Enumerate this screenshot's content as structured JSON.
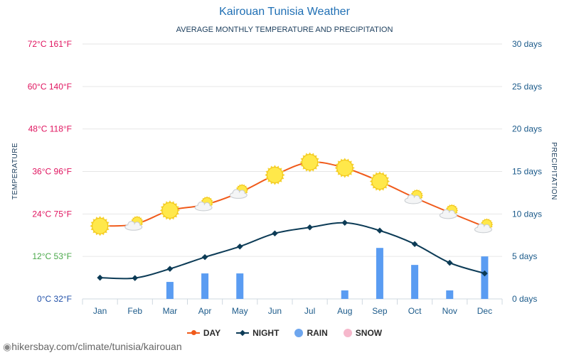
{
  "title": "Kairouan Tunisia Weather",
  "subtitle": "AVERAGE MONTHLY TEMPERATURE AND PRECIPITATION",
  "footer": "hikersbay.com/climate/tunisia/kairouan",
  "colors": {
    "day": "#f05a1a",
    "night": "#0c3b56",
    "rain": "#5a9cf2",
    "snow": "#f6b8cc",
    "grid": "#e6e6e6"
  },
  "legend": [
    {
      "label": "DAY",
      "color": "#f05a1a",
      "kind": "line-dot"
    },
    {
      "label": "NIGHT",
      "color": "#0c3b56",
      "kind": "line-diamond"
    },
    {
      "label": "RAIN",
      "color": "#6ea6ee",
      "kind": "circle"
    },
    {
      "label": "SNOW",
      "color": "#f6b8cc",
      "kind": "circle"
    }
  ],
  "chart_data": {
    "type": "line",
    "categories": [
      "Jan",
      "Feb",
      "Mar",
      "Apr",
      "May",
      "Jun",
      "Jul",
      "Aug",
      "Sep",
      "Oct",
      "Nov",
      "Dec"
    ],
    "left_axis": {
      "title": "TEMPERATURE",
      "range": [
        0,
        72
      ],
      "ticks": [
        {
          "value": 0,
          "label": "0°C 32°F",
          "color": "#1f4fa8"
        },
        {
          "value": 12,
          "label": "12°C 53°F",
          "color": "#4aa84a"
        },
        {
          "value": 24,
          "label": "24°C 75°F",
          "color": "#e0145f"
        },
        {
          "value": 36,
          "label": "36°C 96°F",
          "color": "#e0145f"
        },
        {
          "value": 48,
          "label": "48°C 118°F",
          "color": "#e0145f"
        },
        {
          "value": 60,
          "label": "60°C 140°F",
          "color": "#e0145f"
        },
        {
          "value": 72,
          "label": "72°C 161°F",
          "color": "#e0145f"
        }
      ]
    },
    "right_axis": {
      "title": "PRECIPITATION",
      "range": [
        0,
        30
      ],
      "ticks": [
        {
          "value": 0,
          "label": "0 days"
        },
        {
          "value": 5,
          "label": "5 days"
        },
        {
          "value": 10,
          "label": "10 days"
        },
        {
          "value": 15,
          "label": "15 days"
        },
        {
          "value": 20,
          "label": "20 days"
        },
        {
          "value": 25,
          "label": "25 days"
        },
        {
          "value": 30,
          "label": "30 days"
        }
      ]
    },
    "series": [
      {
        "name": "DAY",
        "axis": "left",
        "values": [
          20.6,
          21.1,
          25.0,
          26.6,
          30.1,
          35.0,
          38.6,
          37.0,
          33.2,
          28.6,
          24.4,
          20.4
        ]
      },
      {
        "name": "NIGHT",
        "axis": "left",
        "values": [
          6.0,
          5.9,
          8.5,
          11.8,
          14.8,
          18.5,
          20.2,
          21.5,
          19.3,
          15.5,
          10.2,
          7.2
        ]
      },
      {
        "name": "RAIN",
        "axis": "right",
        "type": "bar",
        "values": [
          0,
          0,
          2,
          3,
          3,
          0,
          0,
          1,
          6,
          4,
          1,
          5
        ]
      },
      {
        "name": "SNOW",
        "axis": "right",
        "type": "bar",
        "values": [
          0,
          0,
          0,
          0,
          0,
          0,
          0,
          0,
          0,
          0,
          0,
          0
        ]
      }
    ],
    "day_icons": [
      "sun",
      "sun-cloud",
      "sun",
      "sun-cloud",
      "sun-cloud",
      "sun",
      "sun",
      "sun",
      "sun",
      "sun-cloud",
      "sun-cloud",
      "sun-cloud"
    ],
    "grid": true,
    "legend_position": "bottom"
  }
}
